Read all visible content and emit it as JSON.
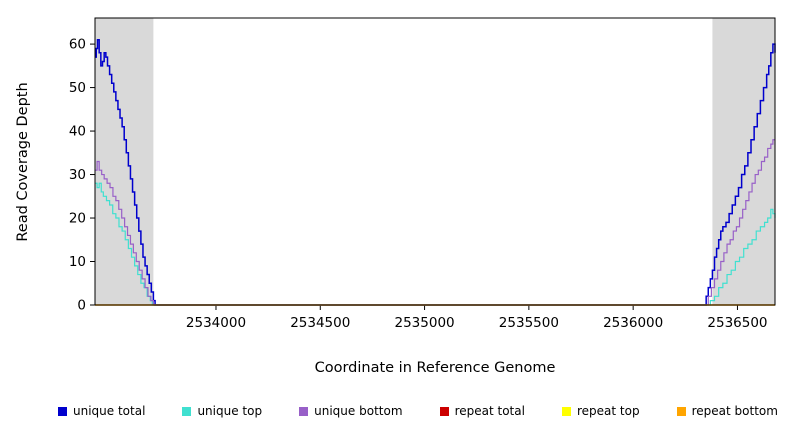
{
  "chart_data": {
    "type": "line",
    "title": "",
    "xlabel": "Coordinate in Reference Genome",
    "ylabel": "Read Coverage Depth",
    "xlim": [
      2533420,
      2536680
    ],
    "ylim": [
      0,
      66
    ],
    "xticks": [
      2534000,
      2534500,
      2535000,
      2535500,
      2536000,
      2536500
    ],
    "yticks": [
      0,
      10,
      20,
      30,
      40,
      50,
      60
    ],
    "grid": false,
    "legend_position": "bottom",
    "shaded_regions": [
      {
        "x0": 2533420,
        "x1": 2533700,
        "color": "#d9d9d9"
      },
      {
        "x0": 2536380,
        "x1": 2536680,
        "color": "#d9d9d9"
      }
    ],
    "series": [
      {
        "name": "unique total",
        "color": "#0000cd",
        "width": 1.5,
        "points": [
          [
            2533420,
            57
          ],
          [
            2533426,
            59
          ],
          [
            2533432,
            61
          ],
          [
            2533440,
            58
          ],
          [
            2533448,
            55
          ],
          [
            2533456,
            56
          ],
          [
            2533464,
            58
          ],
          [
            2533472,
            57
          ],
          [
            2533480,
            55
          ],
          [
            2533490,
            53
          ],
          [
            2533500,
            51
          ],
          [
            2533510,
            49
          ],
          [
            2533520,
            47
          ],
          [
            2533530,
            45
          ],
          [
            2533540,
            43
          ],
          [
            2533550,
            41
          ],
          [
            2533560,
            38
          ],
          [
            2533570,
            35
          ],
          [
            2533580,
            32
          ],
          [
            2533590,
            29
          ],
          [
            2533600,
            26
          ],
          [
            2533610,
            23
          ],
          [
            2533620,
            20
          ],
          [
            2533630,
            17
          ],
          [
            2533640,
            14
          ],
          [
            2533650,
            11
          ],
          [
            2533660,
            9
          ],
          [
            2533670,
            7
          ],
          [
            2533680,
            5
          ],
          [
            2533690,
            3
          ],
          [
            2533700,
            1
          ],
          [
            2533708,
            0
          ],
          [
            2536340,
            0
          ],
          [
            2536350,
            2
          ],
          [
            2536360,
            4
          ],
          [
            2536370,
            6
          ],
          [
            2536380,
            8
          ],
          [
            2536390,
            11
          ],
          [
            2536400,
            13
          ],
          [
            2536410,
            15
          ],
          [
            2536420,
            17
          ],
          [
            2536430,
            18
          ],
          [
            2536445,
            19
          ],
          [
            2536460,
            21
          ],
          [
            2536475,
            23
          ],
          [
            2536490,
            25
          ],
          [
            2536505,
            27
          ],
          [
            2536520,
            30
          ],
          [
            2536535,
            32
          ],
          [
            2536550,
            35
          ],
          [
            2536565,
            38
          ],
          [
            2536580,
            41
          ],
          [
            2536595,
            44
          ],
          [
            2536610,
            47
          ],
          [
            2536625,
            50
          ],
          [
            2536640,
            53
          ],
          [
            2536650,
            55
          ],
          [
            2536660,
            58
          ],
          [
            2536670,
            60
          ],
          [
            2536680,
            58
          ]
        ]
      },
      {
        "name": "unique top",
        "color": "#40e0d0",
        "width": 1.2,
        "points": [
          [
            2533420,
            28
          ],
          [
            2533430,
            27
          ],
          [
            2533440,
            28
          ],
          [
            2533450,
            26
          ],
          [
            2533460,
            25
          ],
          [
            2533475,
            24
          ],
          [
            2533490,
            23
          ],
          [
            2533505,
            21
          ],
          [
            2533520,
            20
          ],
          [
            2533535,
            18
          ],
          [
            2533550,
            17
          ],
          [
            2533565,
            15
          ],
          [
            2533580,
            13
          ],
          [
            2533595,
            11
          ],
          [
            2533610,
            9
          ],
          [
            2533625,
            7
          ],
          [
            2533640,
            5
          ],
          [
            2533655,
            4
          ],
          [
            2533670,
            2
          ],
          [
            2533685,
            1
          ],
          [
            2533695,
            0
          ],
          [
            2536350,
            0
          ],
          [
            2536370,
            1
          ],
          [
            2536390,
            2
          ],
          [
            2536410,
            4
          ],
          [
            2536430,
            5
          ],
          [
            2536450,
            7
          ],
          [
            2536470,
            8
          ],
          [
            2536490,
            10
          ],
          [
            2536510,
            11
          ],
          [
            2536530,
            13
          ],
          [
            2536550,
            14
          ],
          [
            2536570,
            15
          ],
          [
            2536590,
            17
          ],
          [
            2536610,
            18
          ],
          [
            2536630,
            19
          ],
          [
            2536645,
            20
          ],
          [
            2536660,
            22
          ],
          [
            2536670,
            21
          ],
          [
            2536680,
            20
          ]
        ]
      },
      {
        "name": "unique bottom",
        "color": "#9860c8",
        "width": 1.2,
        "points": [
          [
            2533420,
            31
          ],
          [
            2533430,
            33
          ],
          [
            2533440,
            31
          ],
          [
            2533452,
            30
          ],
          [
            2533464,
            29
          ],
          [
            2533478,
            28
          ],
          [
            2533492,
            27
          ],
          [
            2533506,
            25
          ],
          [
            2533520,
            24
          ],
          [
            2533534,
            22
          ],
          [
            2533548,
            20
          ],
          [
            2533562,
            18
          ],
          [
            2533576,
            16
          ],
          [
            2533590,
            14
          ],
          [
            2533604,
            12
          ],
          [
            2533618,
            10
          ],
          [
            2533632,
            8
          ],
          [
            2533646,
            6
          ],
          [
            2533660,
            4
          ],
          [
            2533674,
            2
          ],
          [
            2533688,
            1
          ],
          [
            2533700,
            0
          ],
          [
            2536345,
            0
          ],
          [
            2536360,
            2
          ],
          [
            2536375,
            4
          ],
          [
            2536390,
            6
          ],
          [
            2536405,
            8
          ],
          [
            2536420,
            10
          ],
          [
            2536435,
            12
          ],
          [
            2536450,
            14
          ],
          [
            2536465,
            15
          ],
          [
            2536480,
            17
          ],
          [
            2536495,
            18
          ],
          [
            2536510,
            20
          ],
          [
            2536525,
            22
          ],
          [
            2536540,
            24
          ],
          [
            2536555,
            26
          ],
          [
            2536570,
            28
          ],
          [
            2536585,
            30
          ],
          [
            2536600,
            31
          ],
          [
            2536615,
            33
          ],
          [
            2536630,
            34
          ],
          [
            2536645,
            36
          ],
          [
            2536660,
            37
          ],
          [
            2536670,
            38
          ],
          [
            2536680,
            38
          ]
        ]
      },
      {
        "name": "repeat total",
        "color": "#cc0000",
        "width": 1.2,
        "points": [
          [
            2533420,
            0
          ],
          [
            2536680,
            0
          ]
        ]
      },
      {
        "name": "repeat top",
        "color": "#ffff00",
        "width": 1.2,
        "points": [
          [
            2533420,
            0
          ],
          [
            2536680,
            0
          ]
        ]
      },
      {
        "name": "repeat bottom",
        "color": "#ffa500",
        "width": 1.2,
        "points": [
          [
            2533420,
            0
          ],
          [
            2536680,
            0
          ]
        ]
      }
    ]
  },
  "legend": {
    "items": [
      {
        "label": "unique total",
        "color": "#0000cd",
        "icon": "square-swatch-icon"
      },
      {
        "label": "unique top",
        "color": "#40e0d0",
        "icon": "square-swatch-icon"
      },
      {
        "label": "unique bottom",
        "color": "#9860c8",
        "icon": "square-swatch-icon"
      },
      {
        "label": "repeat total",
        "color": "#cc0000",
        "icon": "square-swatch-icon"
      },
      {
        "label": "repeat top",
        "color": "#ffff00",
        "icon": "square-swatch-icon"
      },
      {
        "label": "repeat bottom",
        "color": "#ffa500",
        "icon": "square-swatch-icon"
      }
    ]
  }
}
